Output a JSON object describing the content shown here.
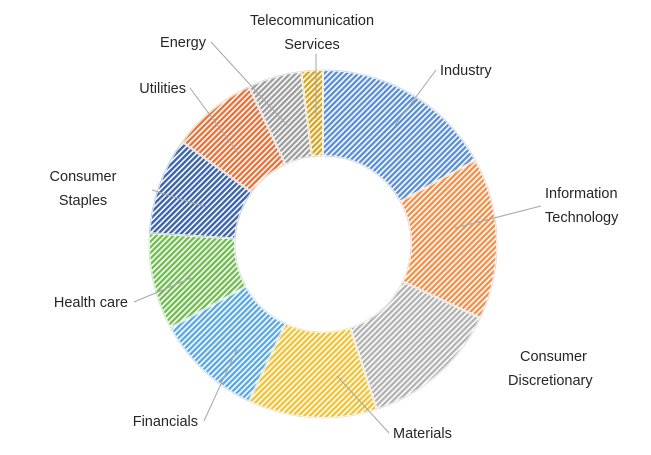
{
  "chart_data": {
    "type": "pie",
    "style": "doughnut",
    "title": "",
    "hatch": "diagonal stripes",
    "slices": [
      {
        "label": "Industry",
        "value": 17,
        "color": "#5b8fd9"
      },
      {
        "label": "Information Technology",
        "value": 15,
        "color": "#f4904a"
      },
      {
        "label": "Consumer Discretionary",
        "value": 13,
        "color": "#b3b3b3"
      },
      {
        "label": "Materials",
        "value": 12,
        "color": "#f5c234"
      },
      {
        "label": "Financials",
        "value": 10,
        "color": "#5aa9e6"
      },
      {
        "label": "Health care",
        "value": 9,
        "color": "#6fbf4f"
      },
      {
        "label": "Consumer Staples",
        "value": 9,
        "color": "#3c64ad"
      },
      {
        "label": "Utilities",
        "value": 8,
        "color": "#e8733a"
      },
      {
        "label": "Energy",
        "value": 5,
        "color": "#9e9e9e"
      },
      {
        "label": "Telecommunication Services",
        "value": 2,
        "color": "#d9a520"
      }
    ]
  }
}
